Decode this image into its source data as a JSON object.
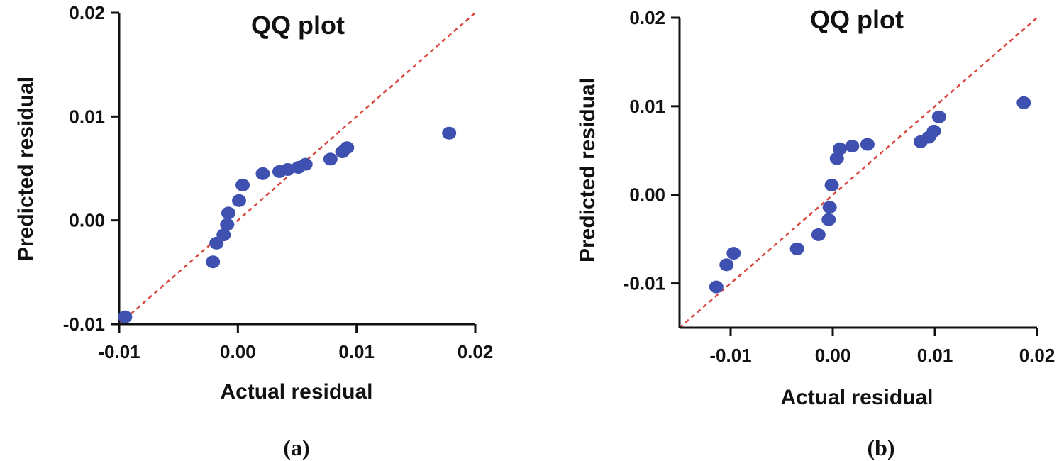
{
  "colors": {
    "point": "#3f51b0",
    "ref_line": "#d9443c",
    "axis": "#111111"
  },
  "chart_data": [
    {
      "type": "scatter",
      "panel": "a",
      "caption": "(a)",
      "title": "QQ plot",
      "xlabel": "Actual residual",
      "ylabel": "Predicted residual",
      "xlim": [
        -0.01,
        0.02
      ],
      "ylim": [
        -0.01,
        0.02
      ],
      "xticks": [
        -0.01,
        0.0,
        0.01,
        0.02
      ],
      "xtick_labels": [
        "-0.01",
        "0.00",
        "0.01",
        "0.02"
      ],
      "yticks": [
        -0.01,
        0.0,
        0.01,
        0.02
      ],
      "ytick_labels": [
        "-0.01",
        "0.00",
        "0.01",
        "0.02"
      ],
      "reference_line": {
        "from": [
          -0.01,
          -0.01
        ],
        "to": [
          0.02,
          0.02
        ]
      },
      "points": [
        [
          -0.0095,
          -0.0093
        ],
        [
          -0.0021,
          -0.004
        ],
        [
          -0.0018,
          -0.0022
        ],
        [
          -0.0012,
          -0.0014
        ],
        [
          -0.0009,
          -0.0004
        ],
        [
          -0.0008,
          0.0007
        ],
        [
          0.0001,
          0.0019
        ],
        [
          0.0004,
          0.0034
        ],
        [
          0.0021,
          0.0045
        ],
        [
          0.0035,
          0.0047
        ],
        [
          0.0042,
          0.0049
        ],
        [
          0.0051,
          0.0051
        ],
        [
          0.0057,
          0.0054
        ],
        [
          0.0078,
          0.0059
        ],
        [
          0.0088,
          0.0066
        ],
        [
          0.0092,
          0.007
        ],
        [
          0.0178,
          0.0084
        ]
      ]
    },
    {
      "type": "scatter",
      "panel": "b",
      "caption": "(b)",
      "title": "QQ plot",
      "xlabel": "Actual residual",
      "ylabel": "Predicted residual",
      "xlim": [
        -0.015,
        0.02
      ],
      "ylim": [
        -0.015,
        0.02
      ],
      "xticks": [
        -0.01,
        0.0,
        0.01,
        0.02
      ],
      "xtick_labels": [
        "-0.01",
        "0.00",
        "0.01",
        "0.02"
      ],
      "yticks": [
        -0.01,
        0.0,
        0.01,
        0.02
      ],
      "ytick_labels": [
        "-0.01",
        "0.00",
        "0.01",
        "0.02"
      ],
      "reference_line": {
        "from": [
          -0.015,
          -0.015
        ],
        "to": [
          0.02,
          0.02
        ]
      },
      "points": [
        [
          -0.0114,
          -0.0104
        ],
        [
          -0.0104,
          -0.0079
        ],
        [
          -0.0097,
          -0.0066
        ],
        [
          -0.0035,
          -0.0061
        ],
        [
          -0.0014,
          -0.0045
        ],
        [
          -0.0004,
          -0.0028
        ],
        [
          -0.0003,
          -0.0014
        ],
        [
          -0.0001,
          0.0011
        ],
        [
          0.0004,
          0.0041
        ],
        [
          0.0007,
          0.0052
        ],
        [
          0.0019,
          0.0055
        ],
        [
          0.0034,
          0.0057
        ],
        [
          0.0086,
          0.006
        ],
        [
          0.0094,
          0.0065
        ],
        [
          0.0099,
          0.0072
        ],
        [
          0.0104,
          0.0088
        ],
        [
          0.0187,
          0.0104
        ]
      ]
    }
  ]
}
